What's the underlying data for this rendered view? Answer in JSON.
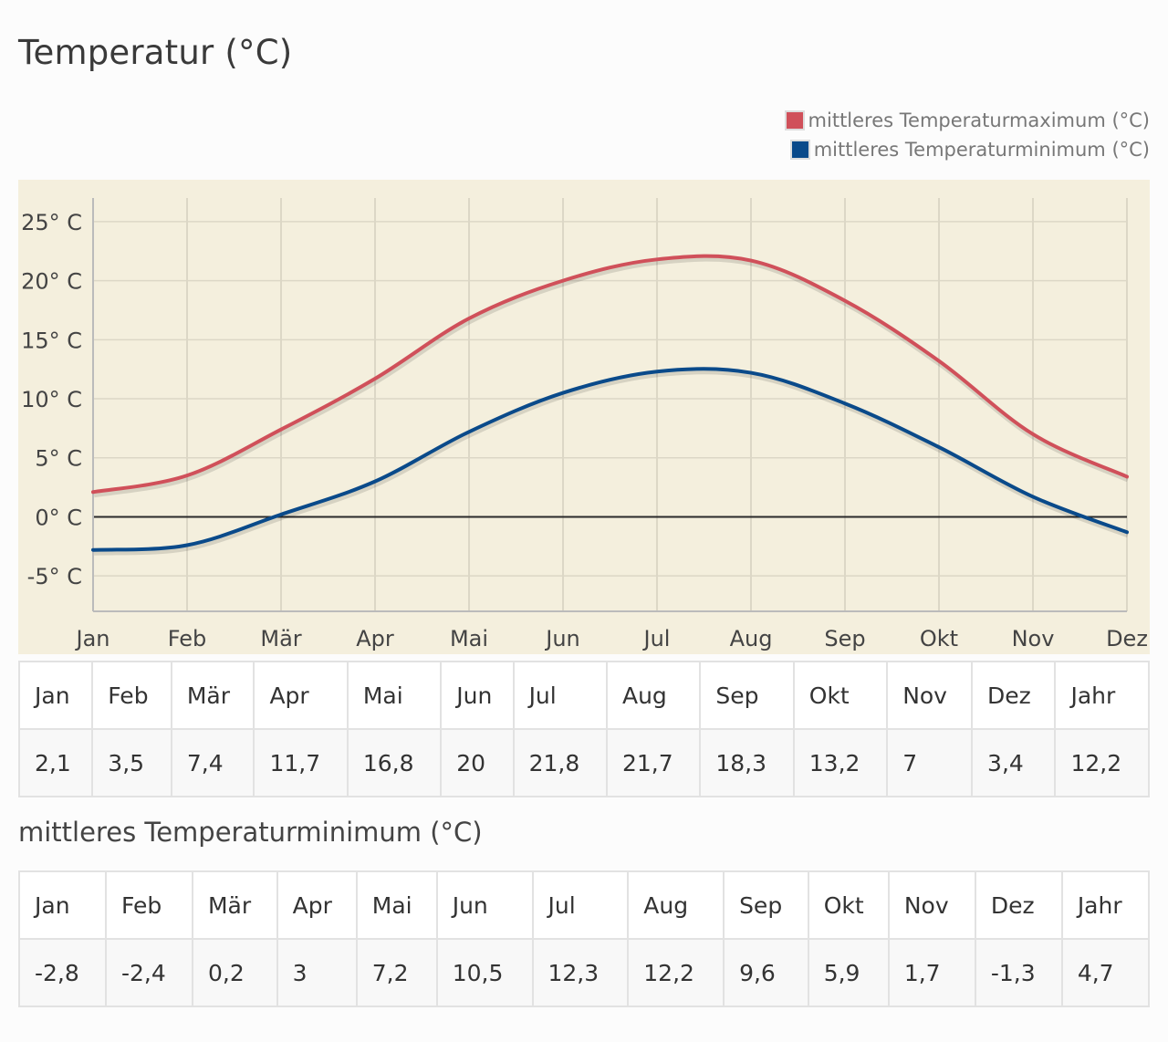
{
  "title": "Temperatur (°C)",
  "legend": [
    {
      "label": "mittleres Temperaturmaximum (°C)",
      "color": "#d0505a"
    },
    {
      "label": "mittleres Temperaturminimum (°C)",
      "color": "#0a4a8a"
    }
  ],
  "chart_data": {
    "type": "line",
    "background": "#f4efdd",
    "categories": [
      "Jan",
      "Feb",
      "Mär",
      "Apr",
      "Mai",
      "Jun",
      "Jul",
      "Aug",
      "Sep",
      "Okt",
      "Nov",
      "Dez"
    ],
    "yticks": [
      "25° C",
      "20° C",
      "15° C",
      "10° C",
      "5° C",
      "0° C",
      "-5° C"
    ],
    "ylim": [
      -8,
      27
    ],
    "grid": true,
    "legend_position": "top-right",
    "series": [
      {
        "name": "mittleres Temperaturmaximum (°C)",
        "color": "#d0505a",
        "values": [
          2.1,
          3.5,
          7.4,
          11.7,
          16.8,
          20,
          21.8,
          21.7,
          18.3,
          13.2,
          7,
          3.4
        ]
      },
      {
        "name": "mittleres Temperaturminimum (°C)",
        "color": "#0a4a8a",
        "values": [
          -2.8,
          -2.4,
          0.2,
          3,
          7.2,
          10.5,
          12.3,
          12.2,
          9.6,
          5.9,
          1.7,
          -1.3
        ]
      }
    ]
  },
  "table_max": {
    "headers": [
      "Jan",
      "Feb",
      "Mär",
      "Apr",
      "Mai",
      "Jun",
      "Jul",
      "Aug",
      "Sep",
      "Okt",
      "Nov",
      "Dez",
      "Jahr"
    ],
    "values": [
      "2,1",
      "3,5",
      "7,4",
      "11,7",
      "16,8",
      "20",
      "21,8",
      "21,7",
      "18,3",
      "13,2",
      "7",
      "3,4",
      "12,2"
    ]
  },
  "subtitle_min": "mittleres Temperaturminimum (°C)",
  "table_min": {
    "headers": [
      "Jan",
      "Feb",
      "Mär",
      "Apr",
      "Mai",
      "Jun",
      "Jul",
      "Aug",
      "Sep",
      "Okt",
      "Nov",
      "Dez",
      "Jahr"
    ],
    "values": [
      "-2,8",
      "-2,4",
      "0,2",
      "3",
      "7,2",
      "10,5",
      "12,3",
      "12,2",
      "9,6",
      "5,9",
      "1,7",
      "-1,3",
      "4,7"
    ]
  }
}
